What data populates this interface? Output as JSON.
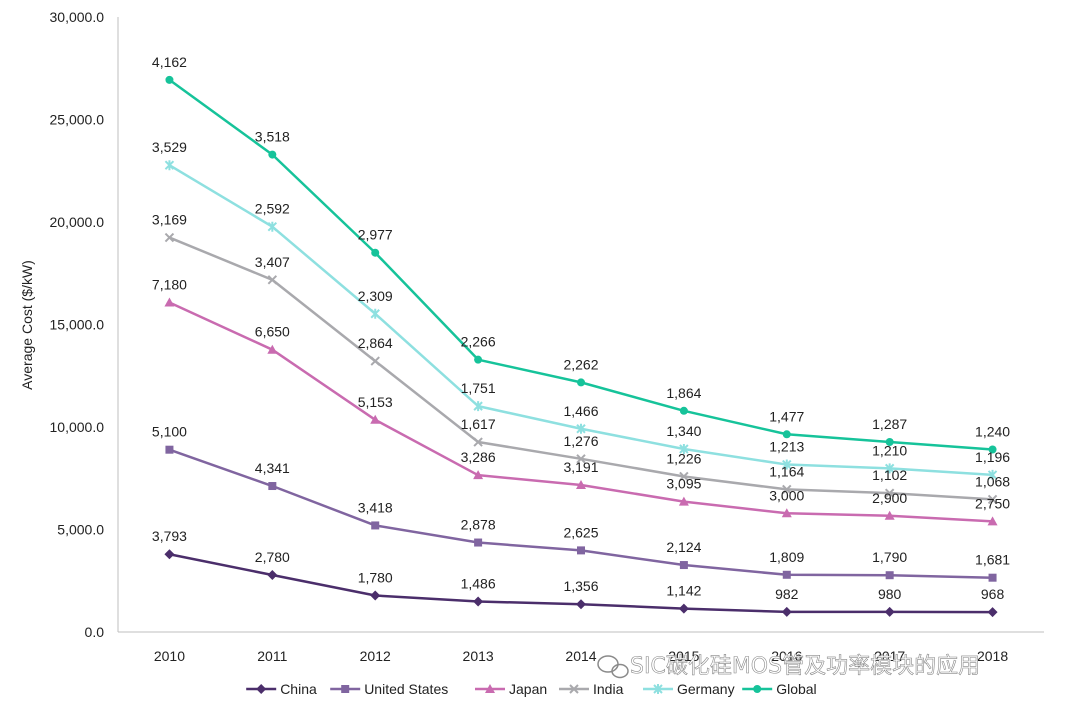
{
  "chart_data": {
    "type": "line",
    "title": "",
    "xlabel": "",
    "ylabel": "Average Cost ($/kW)",
    "ylim": [
      0,
      30000
    ],
    "yticks": [
      "0.0",
      "5,000.0",
      "10,000.0",
      "15,000.0",
      "20,000.0",
      "25,000.0",
      "30,000.0"
    ],
    "categories": [
      "2010",
      "2011",
      "2012",
      "2013",
      "2014",
      "2015",
      "2016",
      "2017",
      "2018"
    ],
    "legend_position": "bottom",
    "series": [
      {
        "name": "China",
        "color": "#4b2e6b",
        "marker": "diamond",
        "values": [
          3793,
          2780,
          1780,
          1486,
          1356,
          1142,
          982,
          980,
          968
        ],
        "labels": [
          "3,793",
          "2,780",
          "1,780",
          "1,486",
          "1,356",
          "1,142",
          "982",
          "980",
          "968"
        ]
      },
      {
        "name": "United States",
        "color": "#8065a0",
        "marker": "square",
        "values": [
          5100,
          4341,
          3418,
          2878,
          2625,
          2124,
          1809,
          1790,
          1681
        ],
        "labels": [
          "5,100",
          "4,341",
          "3,418",
          "2,878",
          "2,625",
          "2,124",
          "1,809",
          "1,790",
          "1,681"
        ]
      },
      {
        "name": "Japan",
        "color": "#c96bb0",
        "marker": "triangle",
        "values": [
          7180,
          6650,
          5153,
          3286,
          3191,
          3095,
          3000,
          2900,
          2750
        ],
        "labels": [
          "7,180",
          "6,650",
          "5,153",
          "3,286",
          "3,191",
          "3,095",
          "3,000",
          "2,900",
          "2,750"
        ]
      },
      {
        "name": "India",
        "color": "#a9a9ad",
        "marker": "x",
        "values": [
          3169,
          3407,
          2864,
          1617,
          1276,
          1226,
          1164,
          1102,
          1068
        ],
        "labels": [
          "3,169",
          "3,407",
          "2,864",
          "1,617",
          "1,276",
          "1,226",
          "1,164",
          "1,102",
          "1,068"
        ]
      },
      {
        "name": "Germany",
        "color": "#8ee0e0",
        "marker": "star",
        "values": [
          3529,
          2592,
          2309,
          1751,
          1466,
          1340,
          1213,
          1210,
          1196
        ],
        "labels": [
          "3,529",
          "2,592",
          "2,309",
          "1,751",
          "1,466",
          "1,340",
          "1,213",
          "1,210",
          "1,196"
        ]
      },
      {
        "name": "Global",
        "color": "#16c39a",
        "marker": "circle",
        "values": [
          4162,
          3518,
          2977,
          2266,
          2262,
          1864,
          1477,
          1287,
          1240
        ],
        "labels": [
          "4,162",
          "3,518",
          "2,977",
          "2,266",
          "2,262",
          "1,864",
          "1,477",
          "1,287",
          "1,240"
        ]
      }
    ],
    "stacked": true
  },
  "watermark": {
    "text": "SIC碳化硅MOS管及功率模块的应用"
  }
}
